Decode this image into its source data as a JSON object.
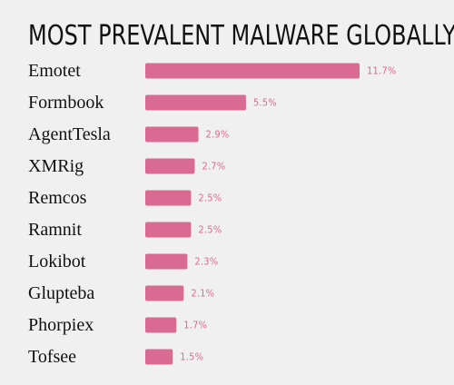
{
  "chart_data": {
    "type": "bar",
    "orientation": "horizontal",
    "title": "MOST PREVALENT MALWARE GLOBALLY",
    "categories": [
      "Emotet",
      "Formbook",
      "AgentTesla",
      "XMRig",
      "Remcos",
      "Ramnit",
      "Lokibot",
      "Glupteba",
      "Phorpiex",
      "Tofsee"
    ],
    "values": [
      11.7,
      5.5,
      2.9,
      2.7,
      2.5,
      2.5,
      2.3,
      2.1,
      1.7,
      1.5
    ],
    "value_labels": [
      "11.7%",
      "5.5%",
      "2.9%",
      "2.7%",
      "2.5%",
      "2.5%",
      "2.3%",
      "2.1%",
      "1.7%",
      "1.5%"
    ],
    "unit": "%",
    "grid": false,
    "legend": "none",
    "colors": {
      "bar": "#d96b93",
      "value_label": "#d96b93",
      "text": "#111111",
      "background": "#f0f0f0"
    }
  }
}
